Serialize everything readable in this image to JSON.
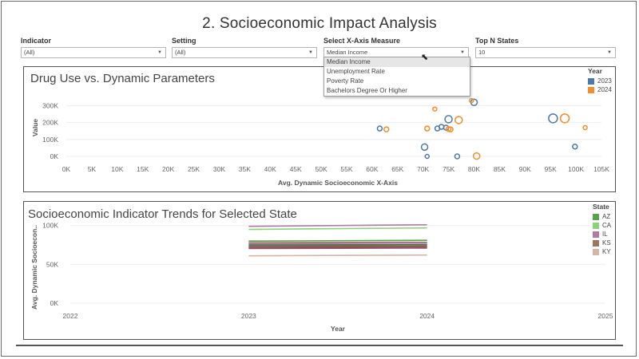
{
  "page": {
    "title": "2. Socioeconomic Impact Analysis"
  },
  "filters": [
    {
      "label": "Indicator",
      "value": "(All)"
    },
    {
      "label": "Setting",
      "value": "(All)"
    },
    {
      "label": "Select X-Axis Measure",
      "value": "Median Income"
    },
    {
      "label": "Top N States",
      "value": "10"
    }
  ],
  "dropdown": {
    "options": [
      "Median Income",
      "Unemployment Rate",
      "Poverty Rate",
      "Bachelors Degree Or Higher"
    ],
    "selected": "Median Income"
  },
  "colors": {
    "y2023": "#4e79a7",
    "y2024": "#f28e2b",
    "AZ": "#59a14f",
    "CA": "#8cd17d",
    "IL": "#b07aa1",
    "KS": "#9d7660",
    "KY": "#d7b5a6"
  },
  "chart_data": [
    {
      "type": "scatter",
      "title": "Drug Use vs. Dynamic Parameters",
      "xlabel": "Avg. Dynamic Socioeconomic X-Axis",
      "ylabel": "Value",
      "xlim": [
        0,
        105000
      ],
      "ylim": [
        0,
        340000
      ],
      "x_ticks": [
        "0K",
        "5K",
        "10K",
        "15K",
        "20K",
        "25K",
        "30K",
        "35K",
        "40K",
        "45K",
        "50K",
        "55K",
        "60K",
        "65K",
        "70K",
        "75K",
        "80K",
        "85K",
        "90K",
        "95K",
        "100K",
        "105K"
      ],
      "y_ticks": [
        "0K",
        "100K",
        "200K",
        "300K"
      ],
      "legend_title": "Year",
      "legend_position": "top-right",
      "series": [
        {
          "name": "2023",
          "points": [
            {
              "x": 61500,
              "y": 165000,
              "s": 3
            },
            {
              "x": 70300,
              "y": 55000,
              "s": 4
            },
            {
              "x": 70800,
              "y": 0,
              "s": 2.5
            },
            {
              "x": 72800,
              "y": 165000,
              "s": 3
            },
            {
              "x": 73600,
              "y": 175000,
              "s": 3
            },
            {
              "x": 74500,
              "y": 170000,
              "s": 3
            },
            {
              "x": 75000,
              "y": 220000,
              "s": 4.5
            },
            {
              "x": 76700,
              "y": 0,
              "s": 3
            },
            {
              "x": 80000,
              "y": 320000,
              "s": 4
            },
            {
              "x": 95500,
              "y": 225000,
              "s": 5.5
            },
            {
              "x": 99800,
              "y": 58000,
              "s": 3
            }
          ]
        },
        {
          "name": "2024",
          "points": [
            {
              "x": 62800,
              "y": 160000,
              "s": 3
            },
            {
              "x": 70800,
              "y": 165000,
              "s": 3
            },
            {
              "x": 72300,
              "y": 280000,
              "s": 2.5
            },
            {
              "x": 75000,
              "y": 162000,
              "s": 3
            },
            {
              "x": 75400,
              "y": 160000,
              "s": 3
            },
            {
              "x": 77000,
              "y": 215000,
              "s": 4.5
            },
            {
              "x": 79500,
              "y": 330000,
              "s": 2.5
            },
            {
              "x": 80500,
              "y": 2000,
              "s": 4
            },
            {
              "x": 97800,
              "y": 225000,
              "s": 5.5
            },
            {
              "x": 101800,
              "y": 170000,
              "s": 2.5
            }
          ]
        }
      ]
    },
    {
      "type": "line",
      "title": "Socioeconomic Indicator Trends for Selected State",
      "xlabel": "Year",
      "ylabel": "Avg. Dynamic Socioecon..",
      "x_ticks": [
        "2022",
        "2023",
        "2024",
        "2025"
      ],
      "xlim": [
        2022,
        2025
      ],
      "ylim": [
        0,
        110000
      ],
      "y_ticks": [
        "0K",
        "50K",
        "100K"
      ],
      "legend_title": "State",
      "legend_position": "top-right",
      "legend_items": [
        "AZ",
        "CA",
        "IL",
        "KS",
        "KY"
      ],
      "series_colors": [
        "#b07aa1",
        "#8cd17d",
        "#59a14f",
        "#9d7660",
        "#b07aa1",
        "#4e6e58",
        "#8b6a50",
        "#7a5a50",
        "#9c4a6a",
        "#d7b5a6"
      ],
      "series": [
        {
          "values": [
            {
              "x": 2023,
              "y": 99000
            },
            {
              "x": 2024,
              "y": 101000
            }
          ]
        },
        {
          "values": [
            {
              "x": 2023,
              "y": 95000
            },
            {
              "x": 2024,
              "y": 97000
            }
          ]
        },
        {
          "values": [
            {
              "x": 2023,
              "y": 80000
            },
            {
              "x": 2024,
              "y": 81000
            }
          ]
        },
        {
          "values": [
            {
              "x": 2023,
              "y": 78000
            },
            {
              "x": 2024,
              "y": 78500
            }
          ]
        },
        {
          "values": [
            {
              "x": 2023,
              "y": 76500
            },
            {
              "x": 2024,
              "y": 77500
            }
          ]
        },
        {
          "values": [
            {
              "x": 2023,
              "y": 75000
            },
            {
              "x": 2024,
              "y": 75500
            }
          ]
        },
        {
          "values": [
            {
              "x": 2023,
              "y": 73500
            },
            {
              "x": 2024,
              "y": 74000
            }
          ]
        },
        {
          "values": [
            {
              "x": 2023,
              "y": 72000
            },
            {
              "x": 2024,
              "y": 72500
            }
          ]
        },
        {
          "values": [
            {
              "x": 2023,
              "y": 70500
            },
            {
              "x": 2024,
              "y": 71000
            }
          ]
        },
        {
          "values": [
            {
              "x": 2023,
              "y": 61000
            },
            {
              "x": 2024,
              "y": 62000
            }
          ]
        }
      ]
    }
  ]
}
